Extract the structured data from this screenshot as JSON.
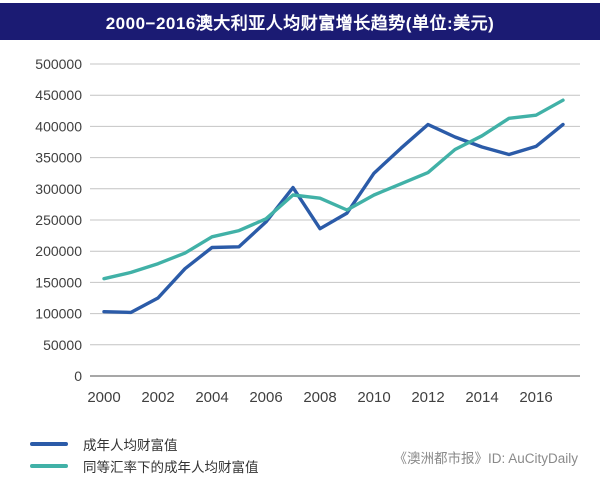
{
  "header": {
    "title": "2000−2016澳大利亚人均财富增长趋势(单位:美元)",
    "bg_color": "#1b1b73",
    "text_color": "#ffffff"
  },
  "chart_data": {
    "type": "line",
    "x": [
      2000,
      2001,
      2002,
      2003,
      2004,
      2005,
      2006,
      2007,
      2008,
      2009,
      2010,
      2011,
      2012,
      2013,
      2014,
      2015,
      2016,
      2017
    ],
    "x_tick_labels": [
      "2000",
      "2002",
      "2004",
      "2006",
      "2008",
      "2010",
      "2012",
      "2014",
      "2016"
    ],
    "y_tick_labels": [
      "0",
      "50000",
      "100000",
      "150000",
      "200000",
      "250000",
      "300000",
      "350000",
      "400000",
      "450000",
      "500000"
    ],
    "ylim": [
      0,
      500000
    ],
    "y_tick_step": 50000,
    "grid": true,
    "legend_position": "bottom-left",
    "series": [
      {
        "name": "成年人均财富值",
        "color": "#2b5ba8",
        "values": [
          103000,
          102000,
          125000,
          172000,
          206000,
          207000,
          247000,
          302000,
          236000,
          261000,
          325000,
          365000,
          403000,
          383000,
          367000,
          355000,
          368000,
          403000
        ]
      },
      {
        "name": "同等汇率下的成年人均财富值",
        "color": "#41b1a7",
        "values": [
          156000,
          166000,
          180000,
          197000,
          223000,
          233000,
          252000,
          290000,
          285000,
          266000,
          290000,
          308000,
          326000,
          363000,
          385000,
          413000,
          418000,
          442000
        ]
      }
    ],
    "axis_text_color": "#404040",
    "gridline_color": "#c4c4c4",
    "zero_line_color": "#8a8a8a"
  },
  "footer": {
    "credit": "《澳洲都市报》ID: AuCityDaily"
  }
}
